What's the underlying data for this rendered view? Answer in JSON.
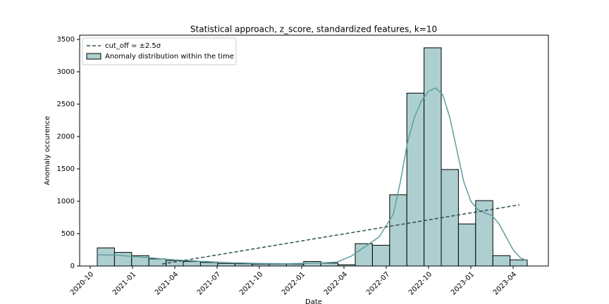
{
  "chart_data": {
    "type": "histogram",
    "title": "Statistical approach, z_score, standardized features, k=10",
    "xlabel": "Date",
    "ylabel": "Anomaly occurence",
    "name": "Anomaly distribution within the time",
    "color": "#aecfcf",
    "bins": [
      0.5,
      1.72,
      2.94,
      4.16,
      5.38,
      6.6,
      7.82,
      9.04,
      10.26,
      11.48,
      12.7,
      13.92,
      15.14,
      16.36,
      17.58,
      18.8,
      20.02,
      21.24,
      22.46,
      23.68,
      24.9,
      26.12,
      27.34,
      28.56,
      29.78,
      31.0
    ],
    "values": [
      280,
      210,
      160,
      110,
      85,
      70,
      55,
      40,
      35,
      30,
      30,
      30,
      70,
      45,
      20,
      345,
      320,
      1100,
      2670,
      3370,
      1490,
      650,
      1010,
      160,
      95
    ],
    "kde": {
      "color": "#5f9ea0",
      "x": [
        0.5,
        2,
        4,
        6,
        8,
        10,
        12,
        14,
        16,
        17.5,
        18.5,
        19.5,
        20.5,
        21.5,
        22,
        22.5,
        23,
        23.5,
        24,
        24.5,
        25,
        25.5,
        26,
        26.5,
        27,
        27.5,
        28,
        28.5,
        29,
        29.5,
        30,
        30.5,
        31
      ],
      "values": [
        175,
        165,
        130,
        95,
        70,
        50,
        40,
        35,
        45,
        60,
        150,
        300,
        450,
        800,
        1300,
        1900,
        2300,
        2550,
        2700,
        2750,
        2650,
        2300,
        1800,
        1300,
        1000,
        870,
        820,
        780,
        650,
        450,
        250,
        130,
        80
      ]
    },
    "trend": {
      "name": "cut_off = ±2.5σ",
      "color": "#2f4f4f",
      "dashed": true,
      "x": [
        5.1,
        30.45
      ],
      "values": [
        30,
        945
      ]
    },
    "xlim": [
      -0.75,
      32.5
    ],
    "xticks": [
      {
        "value": 0,
        "label": "2020-10"
      },
      {
        "value": 3,
        "label": "2021-01"
      },
      {
        "value": 6,
        "label": "2021-04"
      },
      {
        "value": 9,
        "label": "2021-07"
      },
      {
        "value": 12,
        "label": "2021-10"
      },
      {
        "value": 15,
        "label": "2022-01"
      },
      {
        "value": 18,
        "label": "2022-04"
      },
      {
        "value": 21,
        "label": "2022-07"
      },
      {
        "value": 24,
        "label": "2022-10"
      },
      {
        "value": 27,
        "label": "2023-01"
      },
      {
        "value": 30,
        "label": "2023-04"
      }
    ],
    "ylim": [
      0,
      3565
    ],
    "yticks": [
      0,
      500,
      1000,
      1500,
      2000,
      2500,
      3000,
      3500
    ],
    "legend": "upper left"
  }
}
